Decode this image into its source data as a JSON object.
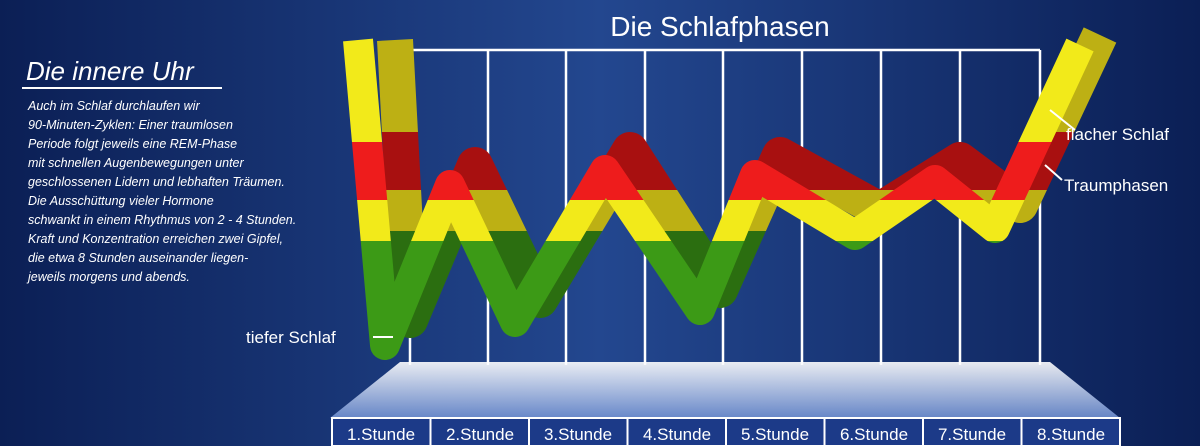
{
  "title": "Die Schlafphasen",
  "sidebar": {
    "heading": "Die innere Uhr",
    "lines": [
      "Auch im Schlaf durchlaufen wir",
      "90-Minuten-Zyklen: Einer traumlosen",
      "Periode folgt jeweils eine REM-Phase",
      "mit schnellen Augenbewegungen unter",
      "geschlossenen Lidern und lebhaften Träumen.",
      "Die Ausschüttung vieler Hormone",
      "schwankt in einem Rhythmus von 2 - 4 Stunden.",
      "Kraft und Konzentration erreichen zwei Gipfel,",
      "die etwa 8 Stunden auseinander liegen-",
      "jeweils morgens und abends."
    ]
  },
  "labels": {
    "deep": "tiefer Schlaf",
    "light": "flacher Schlaf",
    "dream": "Traumphasen"
  },
  "hours": [
    "1.Stunde",
    "2.Stunde",
    "3.Stunde",
    "4.Stunde",
    "5.Stunde",
    "6.Stunde",
    "7.Stunde",
    "8.Stunde"
  ]
}
